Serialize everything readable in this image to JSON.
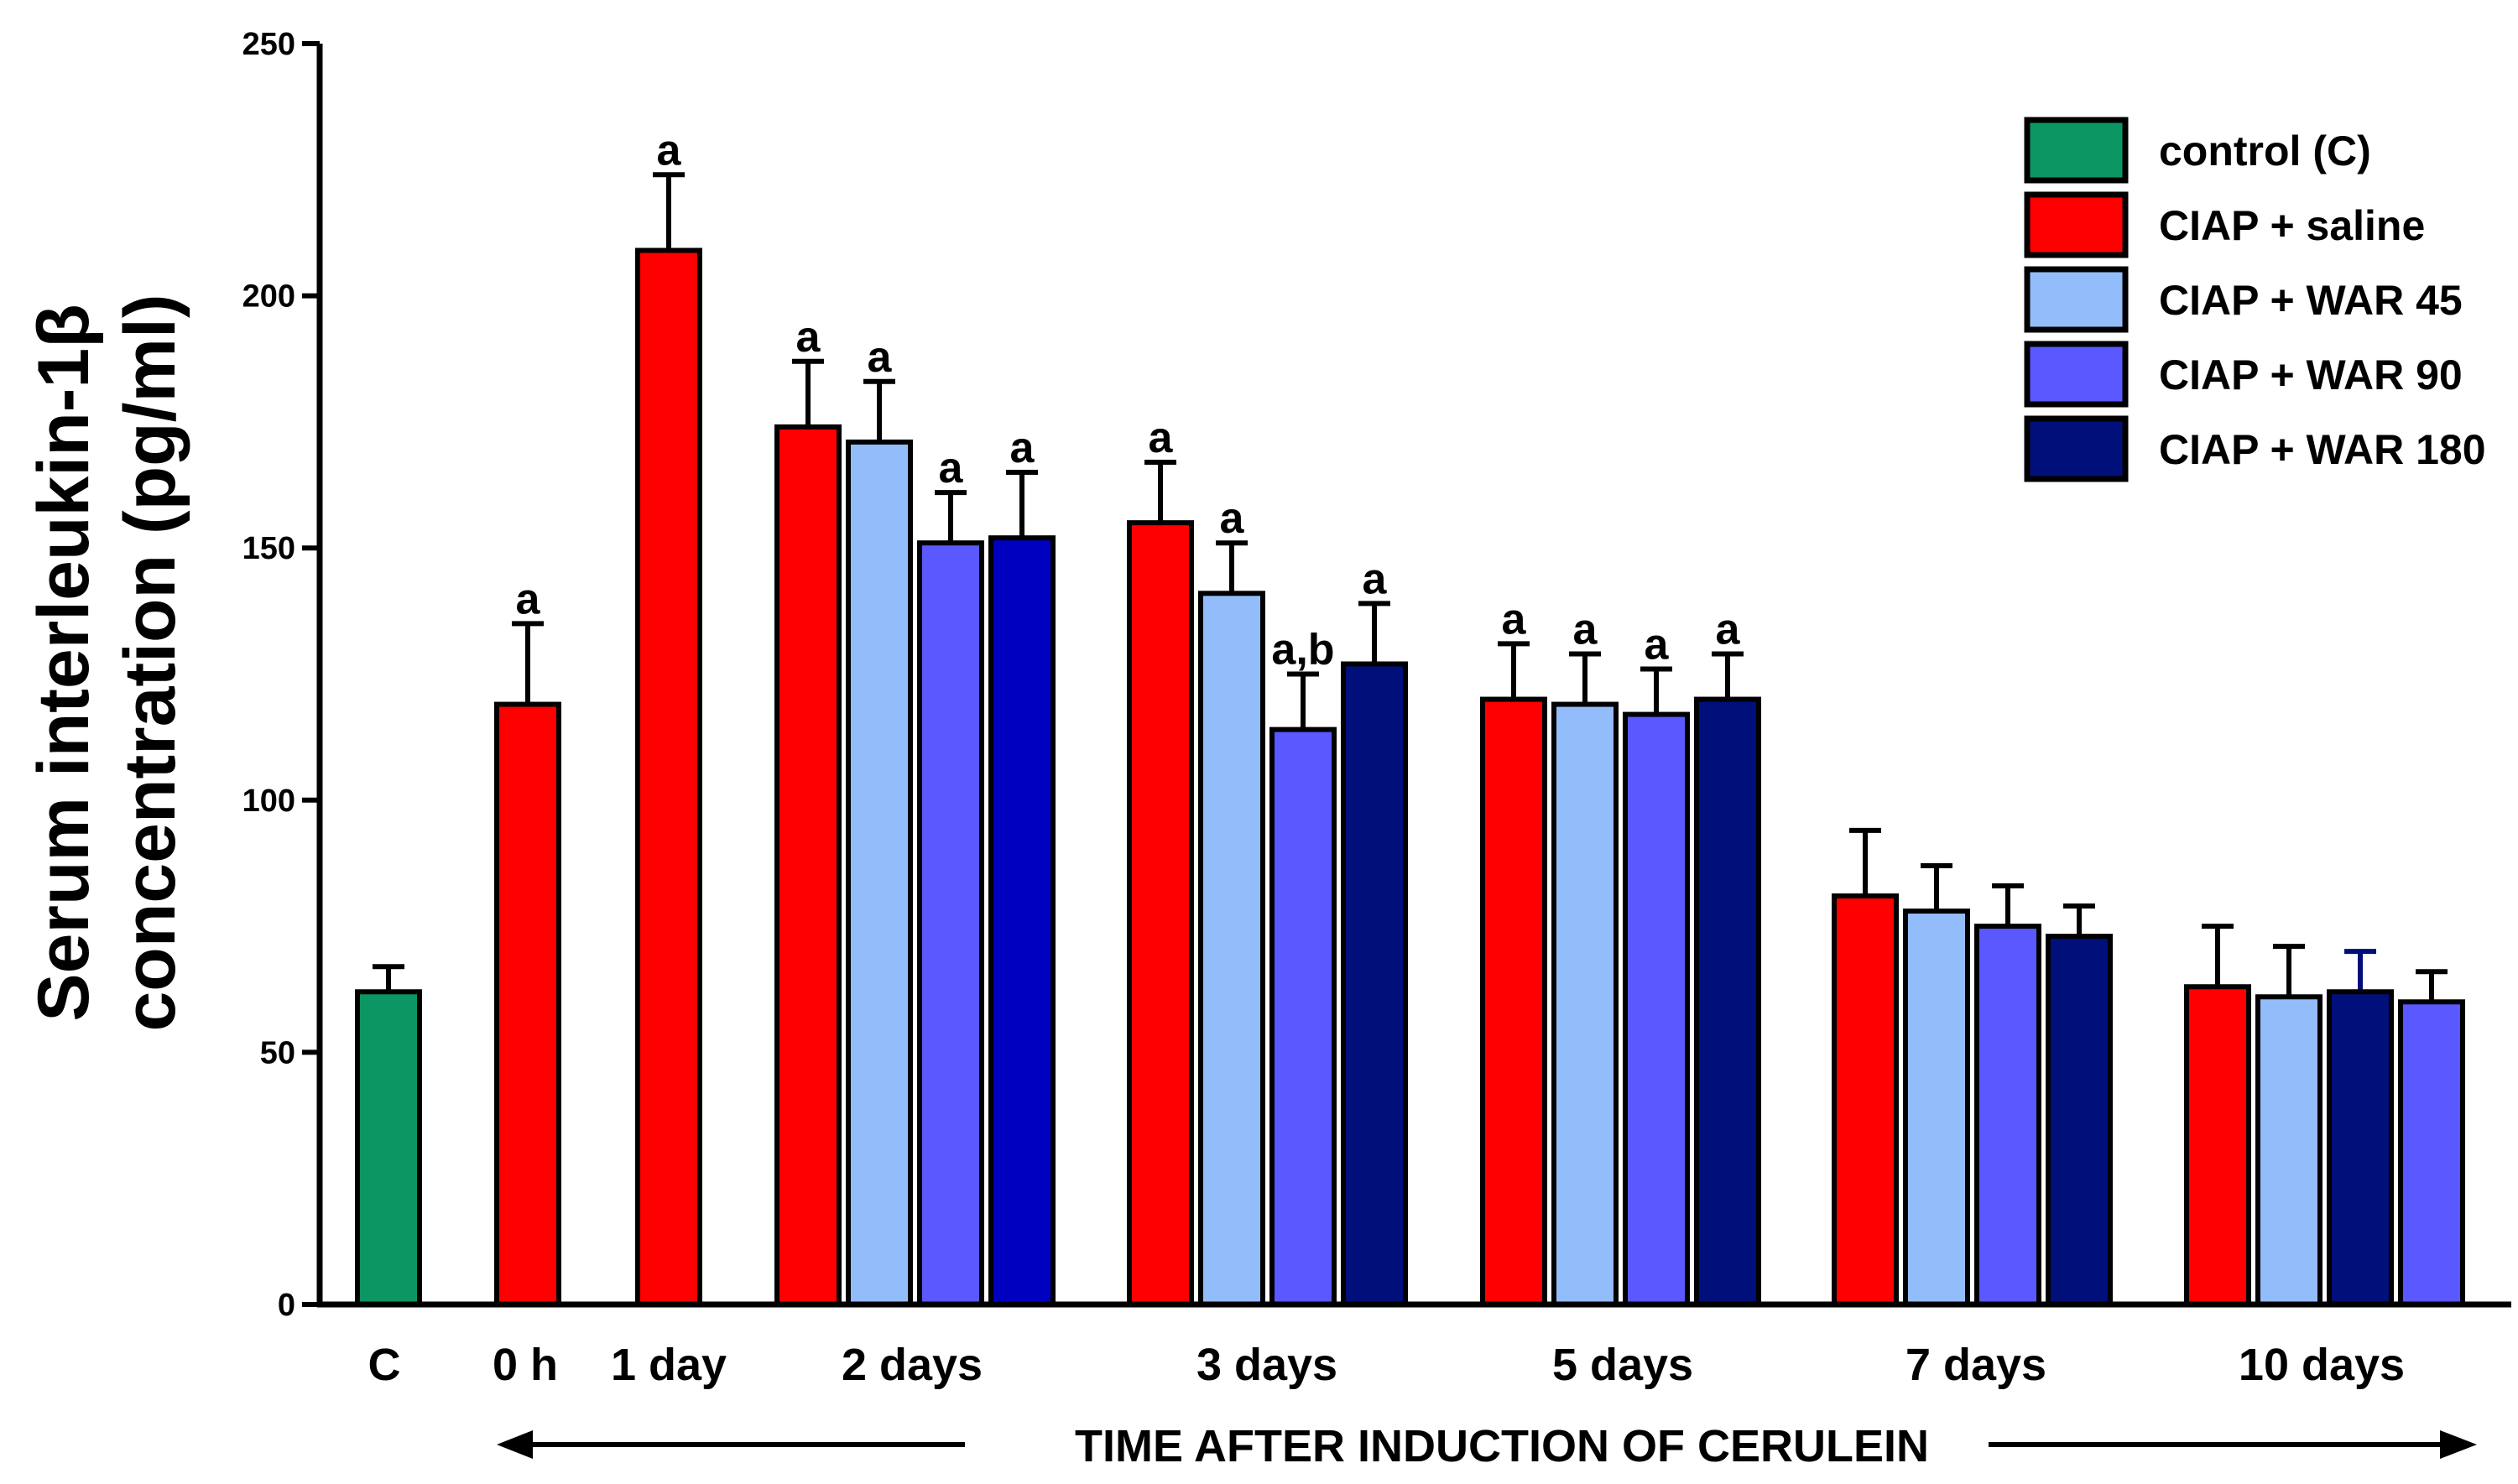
{
  "chart_data": {
    "type": "bar",
    "ylabel_line1": "Serum interleukin-1β",
    "ylabel_line2": "concentration (pg/ml)",
    "xlabel": "TIME AFTER INDUCTION OF CERULEIN",
    "ylim": [
      0,
      250
    ],
    "yticks": [
      0,
      50,
      100,
      150,
      200,
      250
    ],
    "legend_position": "top-right",
    "series": [
      {
        "name": "control (C)",
        "color": "#0b9664"
      },
      {
        "name": "CIAP + saline",
        "color": "#ff0000"
      },
      {
        "name": "CIAP + WAR 45",
        "color": "#93bdfa"
      },
      {
        "name": "CIAP + WAR 90",
        "color": "#5a58ff"
      },
      {
        "name": "CIAP + WAR 180",
        "color": "#000f7a"
      }
    ],
    "groups": [
      {
        "label": "C",
        "bars": [
          {
            "series": 0,
            "value": 62,
            "error": 5,
            "sig": ""
          }
        ]
      },
      {
        "label": "0 h",
        "bars": [
          {
            "series": 1,
            "value": 119,
            "error": 16,
            "sig": "a"
          }
        ]
      },
      {
        "label": "1 day",
        "bars": [
          {
            "series": 1,
            "value": 209,
            "error": 15,
            "sig": "a"
          }
        ]
      },
      {
        "label": "2 days",
        "bars": [
          {
            "series": 1,
            "value": 174,
            "error": 13,
            "sig": "a"
          },
          {
            "series": 2,
            "value": 171,
            "error": 12,
            "sig": "a"
          },
          {
            "series": 3,
            "value": 151,
            "error": 10,
            "sig": "a"
          },
          {
            "series": 4,
            "value": 152,
            "error": 13,
            "sig": "a",
            "fill": "#0000c0"
          }
        ]
      },
      {
        "label": "3 days",
        "bars": [
          {
            "series": 1,
            "value": 155,
            "error": 12,
            "sig": "a"
          },
          {
            "series": 2,
            "value": 141,
            "error": 10,
            "sig": "a"
          },
          {
            "series": 3,
            "value": 114,
            "error": 11,
            "sig": "a,b"
          },
          {
            "series": 4,
            "value": 127,
            "error": 12,
            "sig": "a"
          }
        ]
      },
      {
        "label": "5 days",
        "bars": [
          {
            "series": 1,
            "value": 120,
            "error": 11,
            "sig": "a"
          },
          {
            "series": 2,
            "value": 119,
            "error": 10,
            "sig": "a"
          },
          {
            "series": 3,
            "value": 117,
            "error": 9,
            "sig": "a"
          },
          {
            "series": 4,
            "value": 120,
            "error": 9,
            "sig": "a"
          }
        ]
      },
      {
        "label": "7 days",
        "bars": [
          {
            "series": 1,
            "value": 81,
            "error": 13,
            "sig": ""
          },
          {
            "series": 2,
            "value": 78,
            "error": 9,
            "sig": ""
          },
          {
            "series": 3,
            "value": 75,
            "error": 8,
            "sig": ""
          },
          {
            "series": 4,
            "value": 73,
            "error": 6,
            "sig": ""
          }
        ]
      },
      {
        "label": "10 days",
        "bars": [
          {
            "series": 1,
            "value": 63,
            "error": 12,
            "sig": ""
          },
          {
            "series": 2,
            "value": 61,
            "error": 10,
            "sig": ""
          },
          {
            "series": 4,
            "value": 62,
            "error": 8,
            "sig": "",
            "error_color": "#000f7a"
          },
          {
            "series": 3,
            "value": 60,
            "error": 6,
            "sig": ""
          }
        ]
      }
    ]
  }
}
